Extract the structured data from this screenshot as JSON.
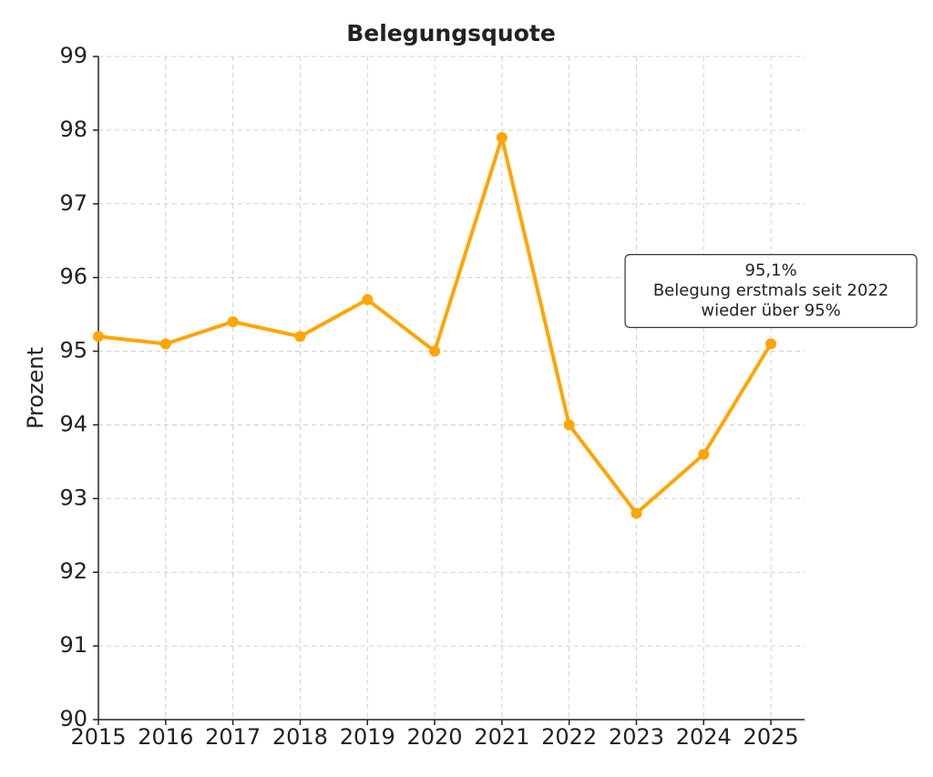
{
  "chart_data": {
    "type": "line",
    "title": "Belegungsquote",
    "y_label": "Prozent",
    "x": [
      2015,
      2016,
      2017,
      2018,
      2019,
      2020,
      2021,
      2022,
      2023,
      2024,
      2025
    ],
    "series": [
      {
        "name": "Belegungsquote",
        "color": "#ffa500",
        "values": [
          95.2,
          95.1,
          95.4,
          95.2,
          95.7,
          95.0,
          97.9,
          94.0,
          92.8,
          93.6,
          95.1
        ]
      }
    ],
    "xlim": [
      2015,
      2025.5
    ],
    "xticks": [
      2015,
      2016,
      2017,
      2018,
      2019,
      2020,
      2021,
      2022,
      2023,
      2024,
      2025
    ],
    "ylim": [
      90,
      99
    ],
    "yticks": [
      90,
      91,
      92,
      93,
      94,
      95,
      96,
      97,
      98,
      99
    ],
    "grid": true,
    "annotation": [
      "95,1%",
      "Belegung erstmals seit 2022",
      "wieder über 95%"
    ]
  }
}
